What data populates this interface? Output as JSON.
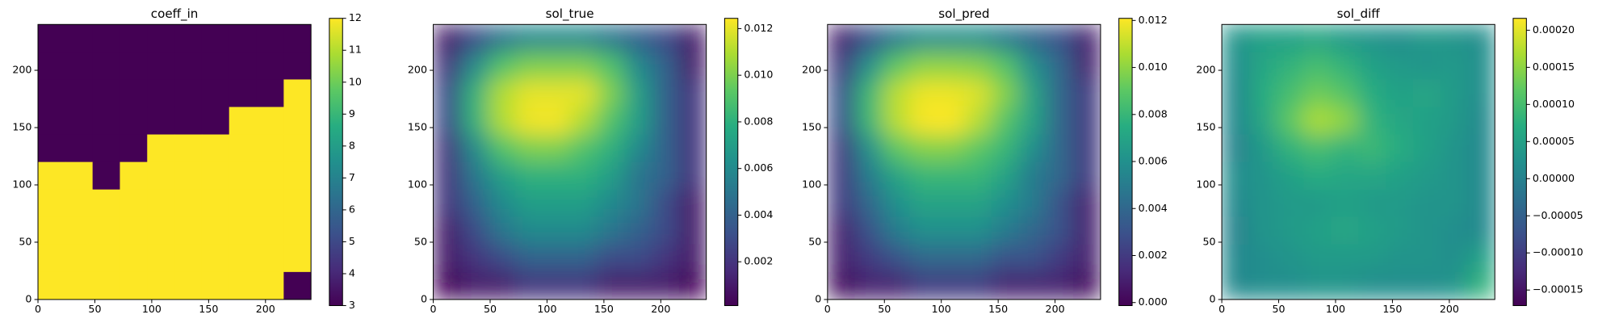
{
  "chart_data": [
    {
      "type": "heatmap",
      "title": "coeff_in",
      "colormap": "viridis",
      "interpolation": "nearest",
      "xlim": [
        0,
        240
      ],
      "ylim": [
        0,
        240
      ],
      "xticks": [
        0,
        50,
        100,
        150,
        200
      ],
      "yticks": [
        0,
        50,
        100,
        150,
        200
      ],
      "zlim": [
        3,
        12
      ],
      "zticks": [
        3,
        4,
        5,
        6,
        7,
        8,
        9,
        10,
        11,
        12
      ],
      "values": [
        [
          3,
          3,
          3,
          3,
          3,
          3,
          3,
          3,
          3,
          3
        ],
        [
          3,
          3,
          3,
          3,
          3,
          3,
          3,
          3,
          3,
          3
        ],
        [
          3,
          3,
          3,
          3,
          3,
          3,
          3,
          3,
          3,
          12
        ],
        [
          3,
          3,
          3,
          3,
          3,
          3,
          3,
          12,
          12,
          12
        ],
        [
          3,
          3,
          3,
          3,
          12,
          12,
          12,
          12,
          12,
          12
        ],
        [
          12,
          12,
          3,
          12,
          12,
          12,
          12,
          12,
          12,
          12
        ],
        [
          12,
          12,
          12,
          12,
          12,
          12,
          12,
          12,
          12,
          12
        ],
        [
          12,
          12,
          12,
          12,
          12,
          12,
          12,
          12,
          12,
          12
        ],
        [
          12,
          12,
          12,
          12,
          12,
          12,
          12,
          12,
          12,
          12
        ],
        [
          12,
          12,
          12,
          12,
          12,
          12,
          12,
          12,
          12,
          3
        ]
      ]
    },
    {
      "type": "heatmap",
      "title": "sol_true",
      "colormap": "viridis",
      "interpolation": "bilinear",
      "xlim": [
        0,
        240
      ],
      "ylim": [
        0,
        240
      ],
      "xticks": [
        0,
        50,
        100,
        150,
        200
      ],
      "yticks": [
        0,
        50,
        100,
        150,
        200
      ],
      "zlim": [
        0.00012,
        0.01244
      ],
      "zticks": [
        0.002,
        0.004,
        0.006,
        0.008,
        {
          "value": 0.01,
          "label": "0.010"
        },
        0.012
      ],
      "values": [
        [
          0.001,
          0.003,
          0.005,
          0.006,
          0.006,
          0.006,
          0.005,
          0.004,
          0.003,
          0.001
        ],
        [
          0.002,
          0.006,
          0.009,
          0.01,
          0.01,
          0.01,
          0.009,
          0.006,
          0.004,
          0.001
        ],
        [
          0.003,
          0.008,
          0.011,
          0.012,
          0.012,
          0.012,
          0.01,
          0.007,
          0.004,
          0.002
        ],
        [
          0.003,
          0.008,
          0.011,
          0.0122,
          0.0123,
          0.011,
          0.009,
          0.007,
          0.004,
          0.002
        ],
        [
          0.002,
          0.006,
          0.009,
          0.01,
          0.01,
          0.009,
          0.008,
          0.006,
          0.004,
          0.002
        ],
        [
          0.002,
          0.005,
          0.007,
          0.008,
          0.008,
          0.008,
          0.007,
          0.005,
          0.004,
          0.002
        ],
        [
          0.002,
          0.004,
          0.006,
          0.007,
          0.007,
          0.007,
          0.006,
          0.005,
          0.003,
          0.001
        ],
        [
          0.001,
          0.003,
          0.005,
          0.006,
          0.006,
          0.006,
          0.005,
          0.004,
          0.003,
          0.001
        ],
        [
          0.001,
          0.002,
          0.003,
          0.004,
          0.004,
          0.004,
          0.003,
          0.003,
          0.002,
          0.001
        ],
        [
          0.0003,
          0.001,
          0.001,
          0.002,
          0.002,
          0.002,
          0.001,
          0.001,
          0.001,
          0.0003
        ]
      ]
    },
    {
      "type": "heatmap",
      "title": "sol_pred",
      "colormap": "viridis",
      "interpolation": "bilinear",
      "xlim": [
        0,
        240
      ],
      "ylim": [
        0,
        240
      ],
      "xticks": [
        0,
        50,
        100,
        150,
        200
      ],
      "yticks": [
        0,
        50,
        100,
        150,
        200
      ],
      "zlim": [
        -0.00013,
        0.01209
      ],
      "zticks": [
        {
          "value": 0,
          "label": "0.000"
        },
        0.002,
        0.004,
        0.006,
        0.008,
        {
          "value": 0.01,
          "label": "0.010"
        },
        0.012
      ],
      "values": [
        [
          0.001,
          0.003,
          0.005,
          0.006,
          0.006,
          0.006,
          0.005,
          0.004,
          0.003,
          0.001
        ],
        [
          0.002,
          0.006,
          0.009,
          0.01,
          0.01,
          0.0098,
          0.0088,
          0.006,
          0.004,
          0.001
        ],
        [
          0.003,
          0.008,
          0.0108,
          0.0118,
          0.0118,
          0.0115,
          0.0098,
          0.007,
          0.004,
          0.002
        ],
        [
          0.003,
          0.008,
          0.0108,
          0.012,
          0.0121,
          0.0108,
          0.0088,
          0.007,
          0.004,
          0.002
        ],
        [
          0.002,
          0.006,
          0.009,
          0.0098,
          0.0098,
          0.009,
          0.008,
          0.006,
          0.004,
          0.002
        ],
        [
          0.002,
          0.005,
          0.007,
          0.008,
          0.008,
          0.008,
          0.007,
          0.005,
          0.004,
          0.002
        ],
        [
          0.002,
          0.004,
          0.006,
          0.007,
          0.007,
          0.007,
          0.006,
          0.005,
          0.003,
          0.001
        ],
        [
          0.001,
          0.003,
          0.005,
          0.006,
          0.006,
          0.006,
          0.005,
          0.004,
          0.003,
          0.001
        ],
        [
          0.001,
          0.002,
          0.003,
          0.004,
          0.004,
          0.004,
          0.003,
          0.003,
          0.002,
          0.001
        ],
        [
          0.0003,
          0.001,
          0.001,
          0.002,
          0.002,
          0.002,
          0.001,
          0.001,
          0.001,
          0.0003
        ]
      ]
    },
    {
      "type": "heatmap",
      "title": "sol_diff",
      "colormap": "viridis",
      "interpolation": "bilinear",
      "xlim": [
        0,
        240
      ],
      "ylim": [
        0,
        240
      ],
      "xticks": [
        0,
        50,
        100,
        150,
        200
      ],
      "yticks": [
        0,
        50,
        100,
        150,
        200
      ],
      "zlim": [
        -0.000171,
        0.000216
      ],
      "zticks": [
        {
          "value": -0.00015,
          "label": "−0.00015"
        },
        {
          "value": -0.0001,
          "label": "−0.00010"
        },
        {
          "value": -5e-05,
          "label": "−0.00005"
        },
        {
          "value": 0,
          "label": "0.00000"
        },
        5e-05,
        {
          "value": 0.0001,
          "label": "0.00010"
        },
        0.00015,
        {
          "value": 0.0002,
          "label": "0.00020"
        }
      ],
      "values": [
        [
          3e-05,
          5e-05,
          5e-05,
          6e-05,
          4e-05,
          3e-05,
          2e-05,
          4e-05,
          3e-05,
          2e-05
        ],
        [
          2e-05,
          6e-05,
          8e-05,
          0.0001,
          8e-05,
          5e-05,
          4e-05,
          3e-05,
          4e-05,
          2e-05
        ],
        [
          1e-05,
          7e-05,
          0.0001,
          0.00013,
          0.00011,
          7e-05,
          5e-05,
          6e-05,
          4e-05,
          2e-05
        ],
        [
          1e-05,
          6e-05,
          0.00012,
          0.00017,
          0.00015,
          8e-05,
          6e-05,
          5e-05,
          4e-05,
          1e-05
        ],
        [
          0,
          4e-05,
          8e-05,
          0.0001,
          8e-05,
          9e-05,
          7e-05,
          5e-05,
          3e-05,
          1e-05
        ],
        [
          2e-05,
          3e-05,
          5e-05,
          7e-05,
          6e-05,
          6e-05,
          5e-05,
          4e-05,
          3e-05,
          1e-05
        ],
        [
          1e-05,
          3e-05,
          4e-05,
          4e-05,
          5e-05,
          4e-05,
          4e-05,
          3e-05,
          3e-05,
          1e-05
        ],
        [
          0,
          3e-05,
          4e-05,
          5e-05,
          6e-05,
          5e-05,
          4e-05,
          3e-05,
          2e-05,
          1e-05
        ],
        [
          1e-05,
          2e-05,
          3e-05,
          4e-05,
          4e-05,
          4e-05,
          3e-05,
          3e-05,
          2e-05,
          5e-05
        ],
        [
          1e-05,
          2e-05,
          2e-05,
          3e-05,
          3e-05,
          2e-05,
          2e-05,
          2e-05,
          3e-05,
          8e-05
        ]
      ]
    }
  ]
}
